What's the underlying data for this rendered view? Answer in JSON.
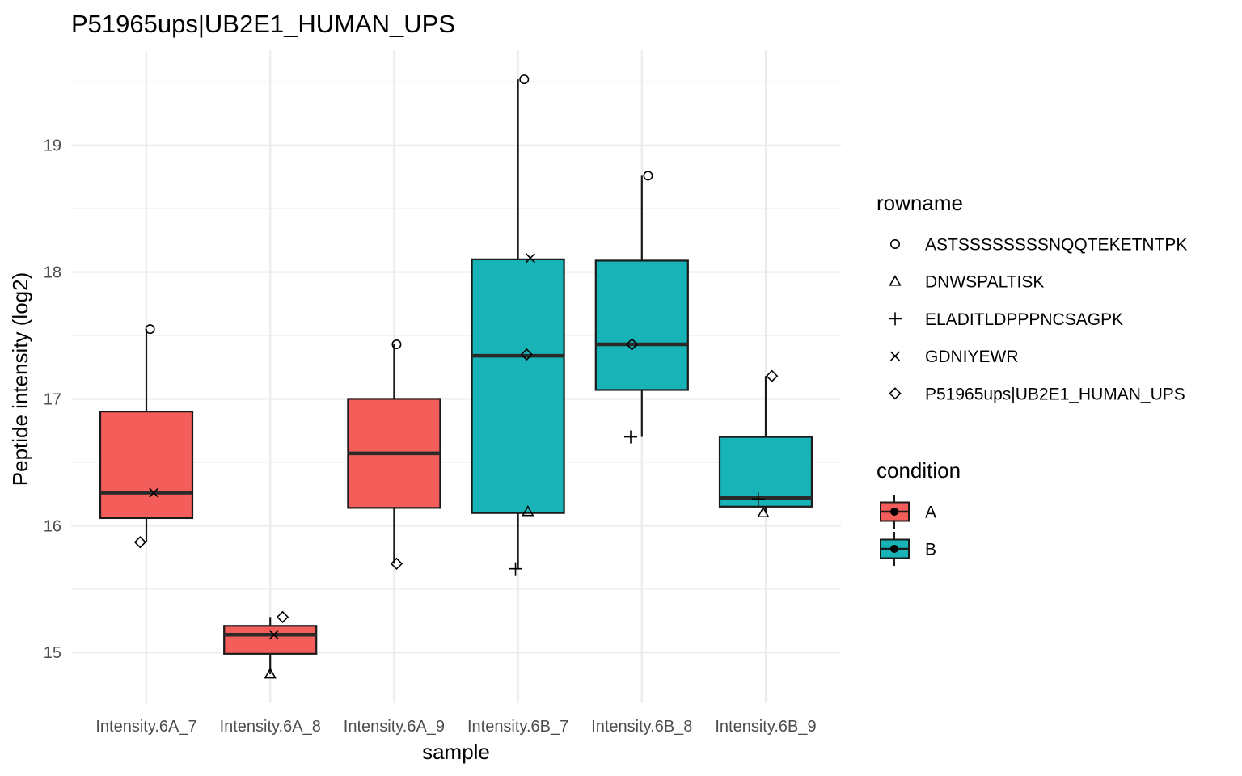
{
  "chart_data": {
    "type": "box",
    "title": "P51965ups|UB2E1_HUMAN_UPS",
    "xlabel": "sample",
    "ylabel": "Peptide intensity (log2)",
    "ylim": [
      14.6,
      19.75
    ],
    "yticks": [
      15,
      16,
      17,
      18,
      19
    ],
    "grid": true,
    "legend_position": "right",
    "categories": [
      "Intensity.6A_7",
      "Intensity.6A_8",
      "Intensity.6A_9",
      "Intensity.6B_7",
      "Intensity.6B_8",
      "Intensity.6B_9"
    ],
    "boxes": [
      {
        "sample": "Intensity.6A_7",
        "condition": "A",
        "q1": 16.06,
        "median": 16.26,
        "q3": 16.9,
        "whisker_low": 15.87,
        "whisker_high": 17.55
      },
      {
        "sample": "Intensity.6A_8",
        "condition": "A",
        "q1": 14.99,
        "median": 15.14,
        "q3": 15.21,
        "whisker_low": 14.83,
        "whisker_high": 15.28
      },
      {
        "sample": "Intensity.6A_9",
        "condition": "A",
        "q1": 16.14,
        "median": 16.57,
        "q3": 17.0,
        "whisker_low": 15.7,
        "whisker_high": 17.43
      },
      {
        "sample": "Intensity.6B_7",
        "condition": "B",
        "q1": 16.1,
        "median": 17.34,
        "q3": 18.1,
        "whisker_low": 15.66,
        "whisker_high": 19.52
      },
      {
        "sample": "Intensity.6B_8",
        "condition": "B",
        "q1": 17.07,
        "median": 17.43,
        "q3": 18.09,
        "whisker_low": 16.7,
        "whisker_high": 18.76
      },
      {
        "sample": "Intensity.6B_9",
        "condition": "B",
        "q1": 16.15,
        "median": 16.22,
        "q3": 16.7,
        "whisker_low": 16.1,
        "whisker_high": 17.18
      }
    ],
    "points": [
      {
        "sample": "Intensity.6A_7",
        "rowname": "ASTSSSSSSSSNQQTEKETNTPK",
        "y": 17.55,
        "jitter": 0.03
      },
      {
        "sample": "Intensity.6A_7",
        "rowname": "GDNIYEWR",
        "y": 16.26,
        "jitter": 0.06
      },
      {
        "sample": "Intensity.6A_7",
        "rowname": "P51965ups|UB2E1_HUMAN_UPS",
        "y": 15.87,
        "jitter": -0.05
      },
      {
        "sample": "Intensity.6A_8",
        "rowname": "DNWSPALTISK",
        "y": 14.83,
        "jitter": 0.0
      },
      {
        "sample": "Intensity.6A_8",
        "rowname": "GDNIYEWR",
        "y": 15.14,
        "jitter": 0.03
      },
      {
        "sample": "Intensity.6A_8",
        "rowname": "P51965ups|UB2E1_HUMAN_UPS",
        "y": 15.28,
        "jitter": 0.1
      },
      {
        "sample": "Intensity.6A_9",
        "rowname": "ASTSSSSSSSSNQQTEKETNTPK",
        "y": 17.43,
        "jitter": 0.02
      },
      {
        "sample": "Intensity.6A_9",
        "rowname": "P51965ups|UB2E1_HUMAN_UPS",
        "y": 15.7,
        "jitter": 0.02
      },
      {
        "sample": "Intensity.6B_7",
        "rowname": "ASTSSSSSSSSNQQTEKETNTPK",
        "y": 19.52,
        "jitter": 0.05
      },
      {
        "sample": "Intensity.6B_7",
        "rowname": "GDNIYEWR",
        "y": 18.11,
        "jitter": 0.1
      },
      {
        "sample": "Intensity.6B_7",
        "rowname": "P51965ups|UB2E1_HUMAN_UPS",
        "y": 17.35,
        "jitter": 0.07
      },
      {
        "sample": "Intensity.6B_7",
        "rowname": "DNWSPALTISK",
        "y": 16.11,
        "jitter": 0.08
      },
      {
        "sample": "Intensity.6B_7",
        "rowname": "ELADITLDPPPNCSAGPK",
        "y": 15.66,
        "jitter": -0.02
      },
      {
        "sample": "Intensity.6B_8",
        "rowname": "ASTSSSSSSSSNQQTEKETNTPK",
        "y": 18.76,
        "jitter": 0.05
      },
      {
        "sample": "Intensity.6B_8",
        "rowname": "P51965ups|UB2E1_HUMAN_UPS",
        "y": 17.43,
        "jitter": -0.08
      },
      {
        "sample": "Intensity.6B_8",
        "rowname": "ELADITLDPPPNCSAGPK",
        "y": 16.7,
        "jitter": -0.09
      },
      {
        "sample": "Intensity.6B_9",
        "rowname": "P51965ups|UB2E1_HUMAN_UPS",
        "y": 17.18,
        "jitter": 0.05
      },
      {
        "sample": "Intensity.6B_9",
        "rowname": "ELADITLDPPPNCSAGPK",
        "y": 16.21,
        "jitter": -0.06
      },
      {
        "sample": "Intensity.6B_9",
        "rowname": "DNWSPALTISK",
        "y": 16.1,
        "jitter": -0.02
      }
    ],
    "legend_shape": {
      "title": "rowname",
      "entries": [
        {
          "label": "ASTSSSSSSSSNQQTEKETNTPK",
          "shape": "circle"
        },
        {
          "label": "DNWSPALTISK",
          "shape": "triangle"
        },
        {
          "label": "ELADITLDPPPNCSAGPK",
          "shape": "plus"
        },
        {
          "label": "GDNIYEWR",
          "shape": "cross"
        },
        {
          "label": "P51965ups|UB2E1_HUMAN_UPS",
          "shape": "diamond"
        }
      ]
    },
    "legend_fill": {
      "title": "condition",
      "entries": [
        {
          "label": "A",
          "color": "#F8766D"
        },
        {
          "label": "B",
          "color": "#00BFC4"
        }
      ]
    },
    "colors": {
      "A": "#F35D5A",
      "B": "#17B3B7",
      "grid": "#ebebeb",
      "box_line": "#1a1a1a"
    }
  }
}
